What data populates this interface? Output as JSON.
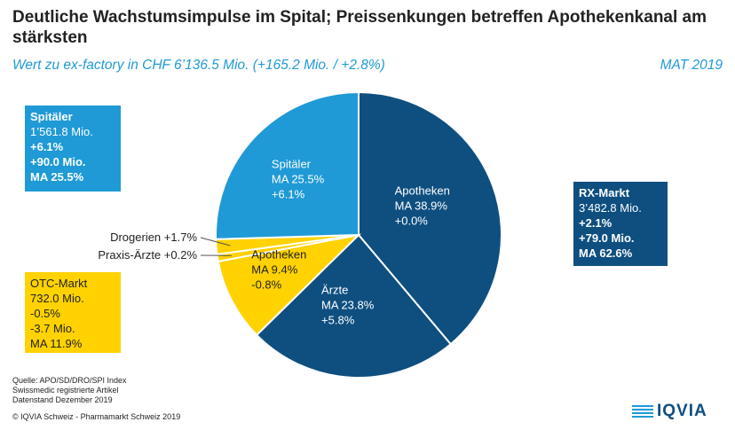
{
  "header": {
    "title": "Deutliche Wachstumsimpulse im Spital; Preissenkungen betreffen Apothekenkanal am stärksten",
    "subtitle": "Wert zu ex-factory in CHF 6’136.5 Mio. (+165.2 Mio. / +2.8%)",
    "period": "MAT 2019"
  },
  "boxes": {
    "spitaeler": {
      "title": "Spitäler",
      "value": "1’561.8 Mio.",
      "growth_pct": "+6.1%",
      "growth_abs": "+90.0 Mio.",
      "share": "MA 25.5%",
      "color": "#1f9ad6"
    },
    "rx": {
      "title": "RX-Markt",
      "value": "3’482.8 Mio.",
      "growth_pct": "+2.1%",
      "growth_abs": "+79.0 Mio.",
      "share": "MA 62.6%",
      "color": "#0e4f80"
    },
    "otc": {
      "title": "OTC-Markt",
      "value": "732.0 Mio.",
      "growth_pct": "-0.5%",
      "growth_abs": "-3.7 Mio.",
      "share": "MA 11.9%",
      "color": "#ffd200"
    }
  },
  "chart_data": {
    "type": "pie",
    "start_angle_deg": 0,
    "slices": [
      {
        "name": "Apotheken",
        "share": 38.9,
        "label_share": "MA 38.9%",
        "label_growth": "+0.0%",
        "color": "#0e4f80",
        "text_color": "#ffffff"
      },
      {
        "name": "Ärzte",
        "share": 23.8,
        "label_share": "MA 23.8%",
        "label_growth": "+5.8%",
        "color": "#0e4f80",
        "text_color": "#ffffff"
      },
      {
        "name": "Apotheken",
        "share": 9.4,
        "label_share": "MA 9.4%",
        "label_growth": "-0.8%",
        "color": "#ffd200",
        "text_color": "#222222"
      },
      {
        "name": "Praxis-Ärzte",
        "share": 0.8,
        "color": "#ffd200"
      },
      {
        "name": "Drogerien",
        "share": 1.7,
        "color": "#ffd200"
      },
      {
        "name": "Spitäler",
        "share": 25.5,
        "label_share": "MA 25.5%",
        "label_growth": "+6.1%",
        "color": "#1f9ad6",
        "text_color": "#ffffff"
      }
    ],
    "external_labels": [
      {
        "slice": 4,
        "text": "Drogerien +1.7%"
      },
      {
        "slice": 3,
        "text": "Praxis-Ärzte +0.2%"
      }
    ]
  },
  "footer": {
    "source_lines": [
      "Quelle: APO/SD/DRO/SPI Index",
      "Swissmedic registrierte Artikel",
      "Datenstand Dezember 2019"
    ],
    "copyright": "© IQVIA Schweiz - Pharmamarkt Schweiz 2019",
    "logo_text": "IQVIA",
    "logo_color": "#0e4f80"
  }
}
